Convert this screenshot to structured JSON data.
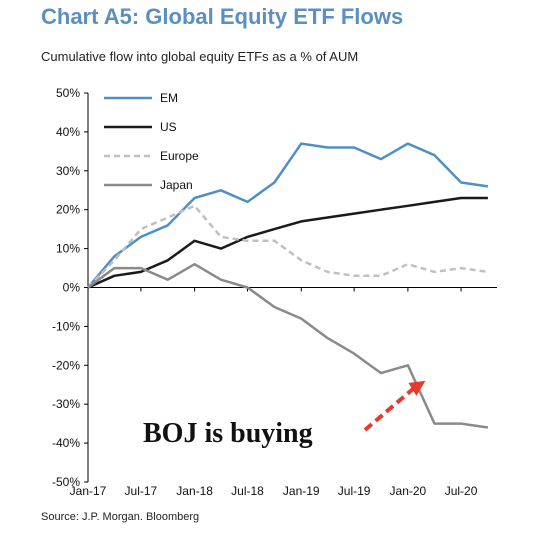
{
  "chart_data": {
    "type": "line",
    "title": "Chart A5: Global Equity ETF Flows",
    "subtitle": "Cumulative flow into global equity ETFs as a % of AUM",
    "source": "Source: J.P. Morgan. Bloomberg",
    "ylabel": "",
    "xlabel": "",
    "ylim": [
      -50,
      50
    ],
    "yticks": [
      50,
      40,
      30,
      20,
      10,
      0,
      -10,
      -20,
      -30,
      -40,
      -50
    ],
    "ytick_labels": [
      "50%",
      "40%",
      "30%",
      "20%",
      "10%",
      "0%",
      "-10%",
      "-20%",
      "-30%",
      "-40%",
      "-50%"
    ],
    "xticks": [
      "Jan-17",
      "Jul-17",
      "Jan-18",
      "Jul-18",
      "Jan-19",
      "Jul-19",
      "Jan-20",
      "Jul-20"
    ],
    "x": [
      "2017-01",
      "2017-04",
      "2017-07",
      "2017-10",
      "2018-01",
      "2018-04",
      "2018-07",
      "2018-10",
      "2019-01",
      "2019-04",
      "2019-07",
      "2019-10",
      "2020-01",
      "2020-04",
      "2020-07",
      "2020-10"
    ],
    "grid": false,
    "legend_position": "top-left",
    "series": [
      {
        "name": "EM",
        "color": "#4f8fc7",
        "style": "solid",
        "values": [
          0,
          8,
          13,
          16,
          23,
          25,
          22,
          27,
          37,
          36,
          36,
          33,
          37,
          34,
          27,
          26
        ]
      },
      {
        "name": "US",
        "color": "#1a1a1a",
        "style": "solid",
        "values": [
          0,
          3,
          4,
          7,
          12,
          10,
          13,
          15,
          17,
          18,
          19,
          20,
          21,
          22,
          23,
          23
        ]
      },
      {
        "name": "Europe",
        "color": "#c0c0c0",
        "style": "dashed",
        "values": [
          0,
          7,
          15,
          18,
          21,
          13,
          12,
          12,
          7,
          4,
          3,
          3,
          6,
          4,
          5,
          4
        ]
      },
      {
        "name": "Japan",
        "color": "#8a8a8a",
        "style": "solid",
        "values": [
          0,
          5,
          5,
          2,
          6,
          2,
          0,
          -5,
          -8,
          -13,
          -17,
          -22,
          -20,
          -35,
          -35,
          -36
        ]
      }
    ],
    "annotation": {
      "text": "BOJ is buying",
      "arrow_color": "#e33b2e",
      "arrow_target_x": "2020-03",
      "arrow_target_y": -24
    }
  }
}
